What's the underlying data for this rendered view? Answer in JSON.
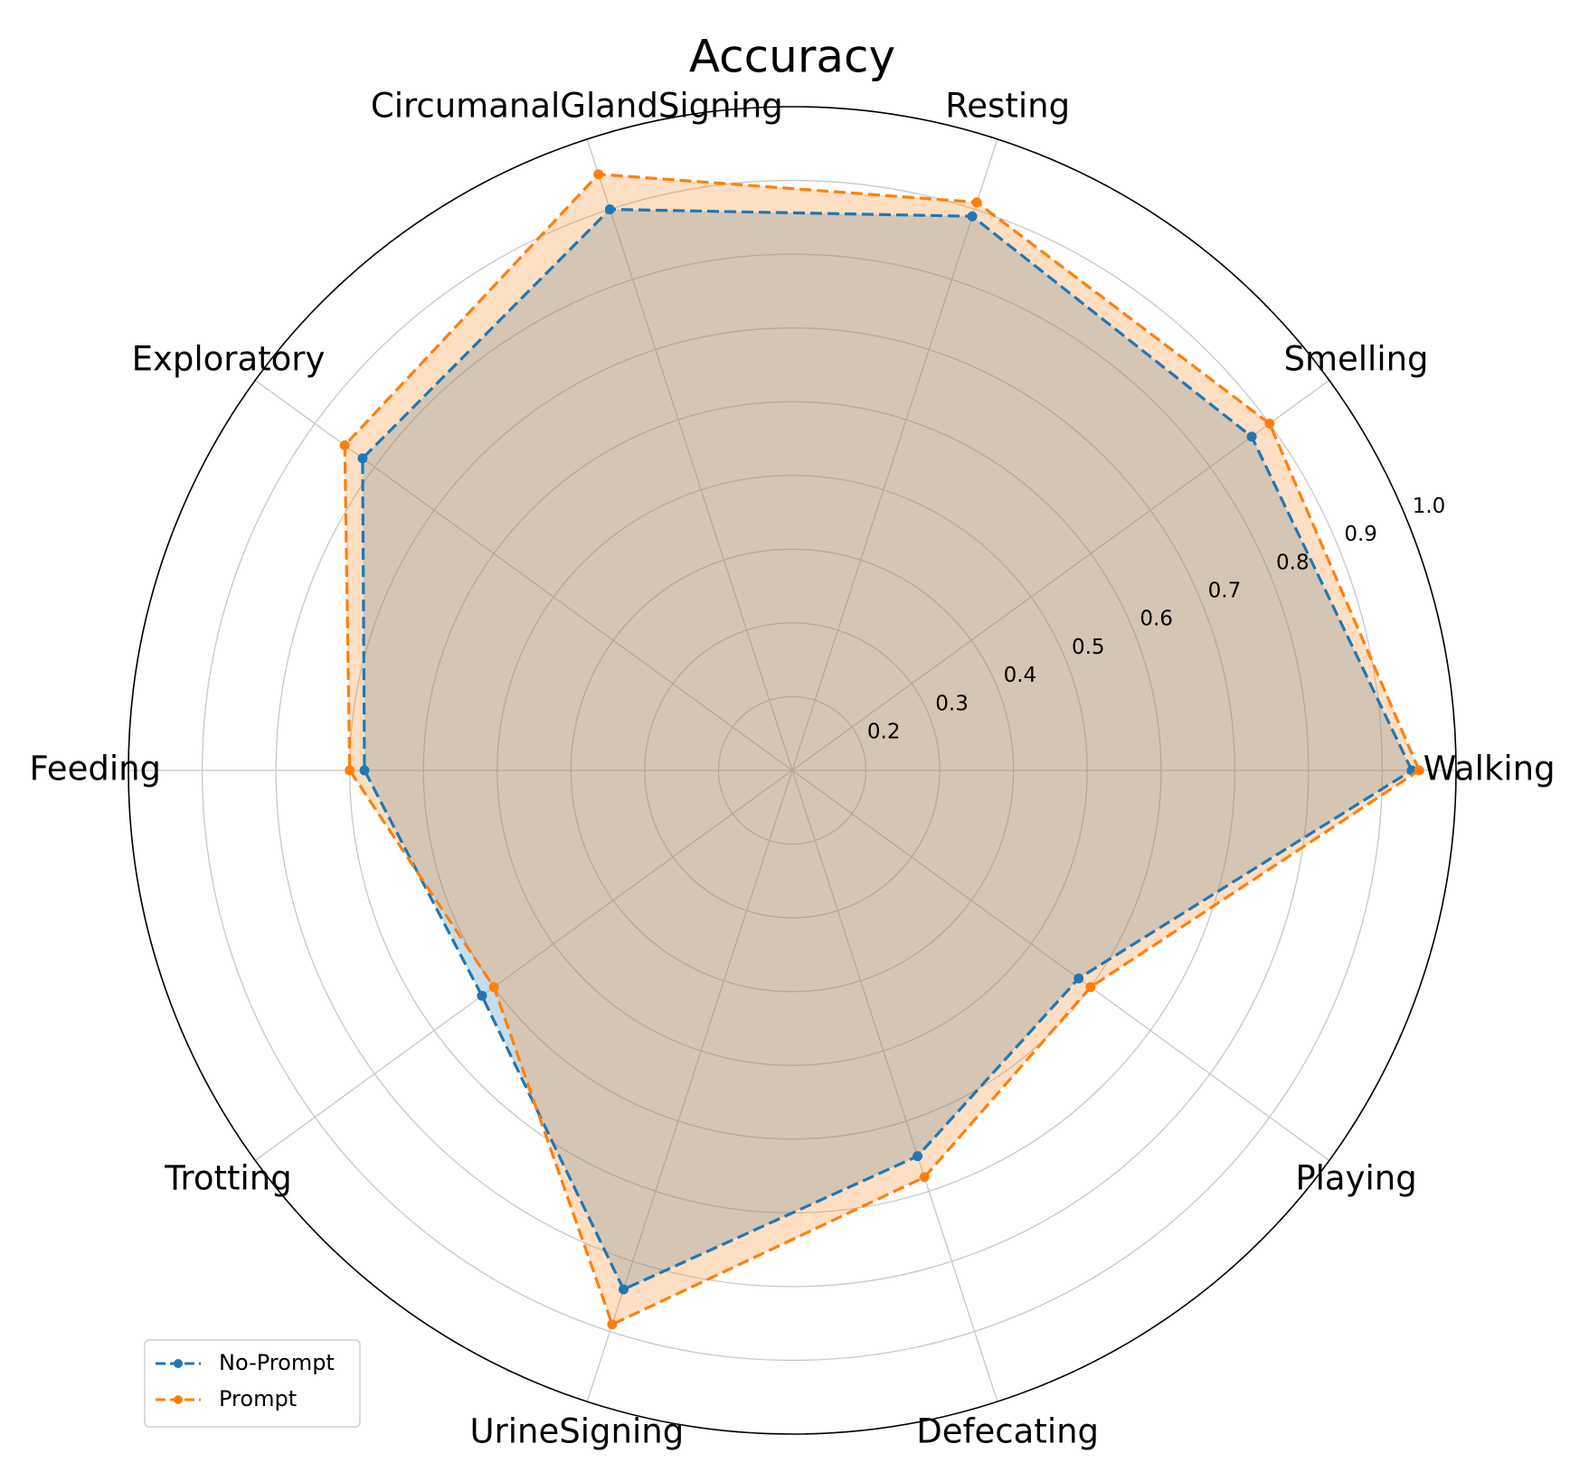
{
  "chart_data": {
    "type": "radar",
    "title": "Accuracy",
    "categories": [
      "Walking",
      "Smelling",
      "Resting",
      "CircumanalGlandSigning",
      "Exploratory",
      "Feeding",
      "Trotting",
      "UrineSigning",
      "Defecating",
      "Playing"
    ],
    "series": [
      {
        "name": "No-Prompt",
        "color": "#1f77b4",
        "values": [
          0.94,
          0.87,
          0.89,
          0.9,
          0.82,
          0.68,
          0.62,
          0.84,
          0.65,
          0.58
        ]
      },
      {
        "name": "Prompt",
        "color": "#ff7f0e",
        "values": [
          0.95,
          0.9,
          0.91,
          0.95,
          0.85,
          0.7,
          0.6,
          0.89,
          0.68,
          0.6
        ]
      }
    ],
    "ylim": [
      0.1,
      1.0
    ],
    "yticks": [
      0.2,
      0.3,
      0.4,
      0.5,
      0.6,
      0.7,
      0.8,
      0.9,
      {
        "value": 1.0,
        "label": "1.0"
      }
    ],
    "grid": true,
    "legend": "lower left"
  }
}
